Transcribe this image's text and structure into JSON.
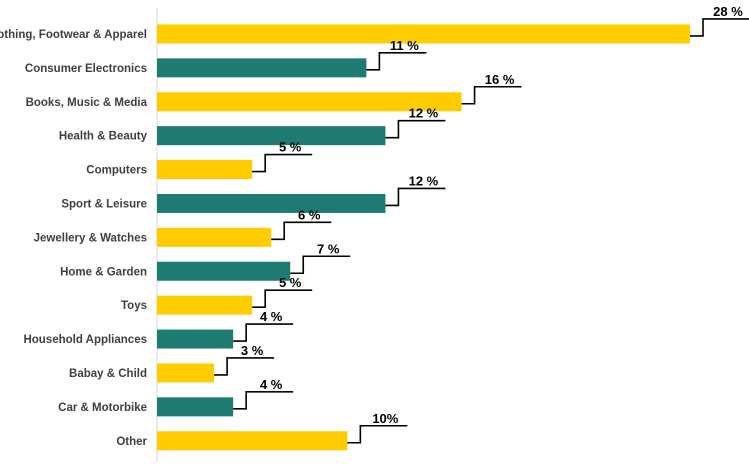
{
  "colors": {
    "yellow": "#FFCC00",
    "teal": "#1F7A72",
    "axis": "#D9D9D9"
  },
  "chart_data": {
    "type": "bar",
    "orientation": "horizontal",
    "categories": [
      "Clothing, Footwear & Apparel",
      "Consumer Electronics",
      "Books, Music & Media",
      "Health & Beauty",
      "Computers",
      "Sport & Leisure",
      "Jewellery  & Watches",
      "Home & Garden",
      "Toys",
      "Household Appliances",
      "Babay & Child",
      "Car & Motorbike",
      "Other"
    ],
    "values": [
      28,
      11,
      16,
      12,
      5,
      12,
      6,
      7,
      5,
      4,
      3,
      4,
      10
    ],
    "value_labels": [
      "28 %",
      "11 %",
      "16 %",
      "12 %",
      "5 %",
      "12 %",
      "6 %",
      "7 %",
      "5 %",
      "4 %",
      "3 %",
      "4 %",
      "10%"
    ],
    "bar_colors": [
      "yellow",
      "teal",
      "yellow",
      "teal",
      "yellow",
      "teal",
      "yellow",
      "teal",
      "yellow",
      "teal",
      "yellow",
      "teal",
      "yellow"
    ],
    "xlim": [
      0,
      28
    ],
    "grid": false,
    "legend": false
  }
}
